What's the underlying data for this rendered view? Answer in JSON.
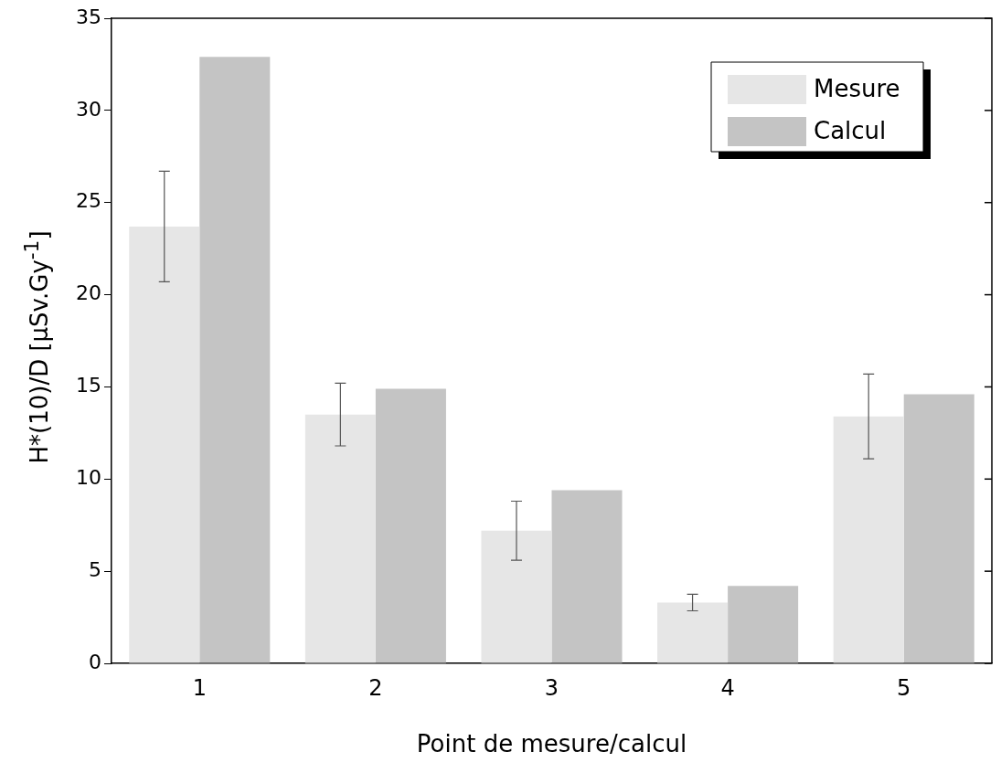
{
  "chart_data": {
    "type": "bar",
    "xlabel": "Point de mesure/calcul",
    "ylabel": "H*(10)/D [µSv.Gy$^{-1}$]",
    "categories": [
      "1",
      "2",
      "3",
      "4",
      "5"
    ],
    "series": [
      {
        "name": "Mesure",
        "color": "#e6e6e6",
        "values": [
          23.7,
          13.5,
          7.2,
          3.3,
          13.4
        ],
        "errors": [
          3.0,
          1.7,
          1.6,
          0.45,
          2.3
        ]
      },
      {
        "name": "Calcul",
        "color": "#c4c4c4",
        "values": [
          32.9,
          14.9,
          9.4,
          4.2,
          14.6
        ]
      }
    ],
    "ylim": [
      0,
      35
    ],
    "yticks": [
      0,
      5,
      10,
      15,
      20,
      25,
      30,
      35
    ],
    "grid": false,
    "legend": "top right"
  }
}
